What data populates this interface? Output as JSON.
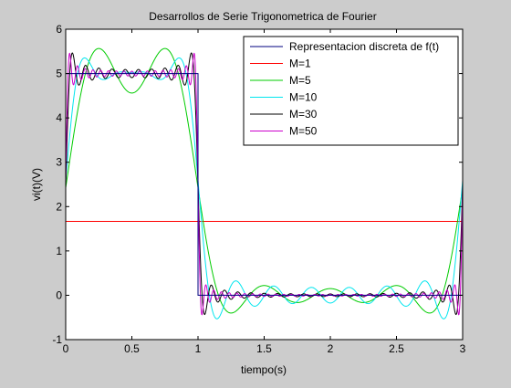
{
  "chart_data": {
    "type": "line",
    "title": "Desarrollos de Serie Trigonometrica de Fourier",
    "xlabel": "tiempo(s)",
    "ylabel": "vi(t)(V)",
    "xlim": [
      0,
      3
    ],
    "ylim": [
      -1,
      6
    ],
    "xticks": [
      0,
      0.5,
      1,
      1.5,
      2,
      2.5,
      3
    ],
    "xtick_labels": [
      "0",
      "0.5",
      "1",
      "1.5",
      "2",
      "2.5",
      "3"
    ],
    "yticks": [
      -1,
      0,
      1,
      2,
      3,
      4,
      5,
      6
    ],
    "ytick_labels": [
      "-1",
      "0",
      "1",
      "2",
      "3",
      "4",
      "5",
      "6"
    ],
    "grid": false,
    "legend_position": "top-right",
    "signal": {
      "description": "square wave period 3 s, high 5 V for 0<t<1, low 0 V for 1<t<3",
      "amplitude": 5,
      "period": 3,
      "high_duration": 1,
      "mean": 1.6667
    },
    "series": [
      {
        "name": "Representacion discreta de f(t)",
        "color": "#00007f",
        "kind": "square",
        "points": [
          [
            0,
            5
          ],
          [
            1,
            5
          ],
          [
            1,
            0
          ],
          [
            3,
            0
          ]
        ]
      },
      {
        "name": "M=1",
        "color": "#ff0000",
        "kind": "fourier",
        "harmonics": 0
      },
      {
        "name": "M=5",
        "color": "#00cc00",
        "kind": "fourier",
        "harmonics": 5
      },
      {
        "name": "M=10",
        "color": "#00e5ee",
        "kind": "fourier",
        "harmonics": 10
      },
      {
        "name": "M=30",
        "color": "#000000",
        "kind": "fourier",
        "harmonics": 30
      },
      {
        "name": "M=50",
        "color": "#cc00cc",
        "kind": "fourier",
        "harmonics": 50
      }
    ]
  }
}
